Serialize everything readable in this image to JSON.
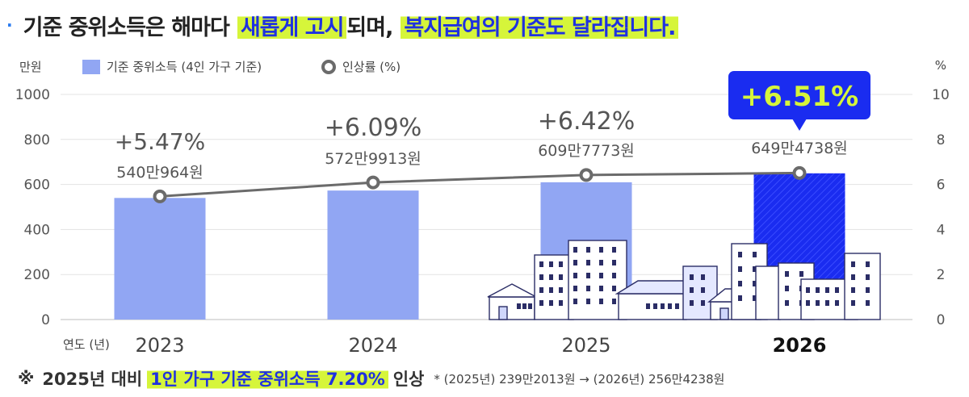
{
  "header": {
    "bullet": "·",
    "title_part1": "기준 중위소득은 해마다",
    "title_hl1": "새롭게 고시",
    "title_part2": "되며,",
    "title_hl2": "복지급여의 기준도 달라집니다."
  },
  "legend": {
    "unit_left": "만원",
    "bar_label": "기준 중위소득 (4인 가구 기준)",
    "line_label": "인상률 (%)",
    "unit_right": "%"
  },
  "chart_data": {
    "type": "bar",
    "x_axis_title": "연도 (년)",
    "categories": [
      "2023",
      "2024",
      "2025",
      "2026"
    ],
    "series": [
      {
        "name": "기준 중위소득 (4인 가구 기준)",
        "values": [
          540.0964,
          572.9913,
          609.7773,
          649.4738
        ],
        "value_labels": [
          "540만964원",
          "572만9913원",
          "609만7773원",
          "649만4738원"
        ]
      },
      {
        "name": "인상률 (%)",
        "type": "line",
        "axis": "right",
        "values": [
          5.47,
          6.09,
          6.42,
          6.51
        ],
        "value_labels": [
          "+5.47%",
          "+6.09%",
          "+6.42%",
          "+6.51%"
        ]
      }
    ],
    "y_left": {
      "min": 0,
      "max": 1000,
      "ticks": [
        0,
        200,
        400,
        600,
        800,
        1000
      ]
    },
    "y_right": {
      "min": 0,
      "max": 10,
      "ticks": [
        0,
        2,
        4,
        6,
        8,
        10
      ]
    },
    "highlight_index": 3,
    "grid": true,
    "colors": {
      "bar": "#91a6f3",
      "bar_highlight": "#1a2cf0",
      "line": "#6b6b6b",
      "callout": "#1a2cf0",
      "callout_text": "#d6f53a"
    }
  },
  "footer": {
    "mark": "※",
    "text1": "2025년 대비",
    "highlight": "1인 가구 기준 중위소득 7.20%",
    "text2": "인상",
    "note": "* (2025년) 239만2013원 → (2026년) 256만4238원"
  }
}
